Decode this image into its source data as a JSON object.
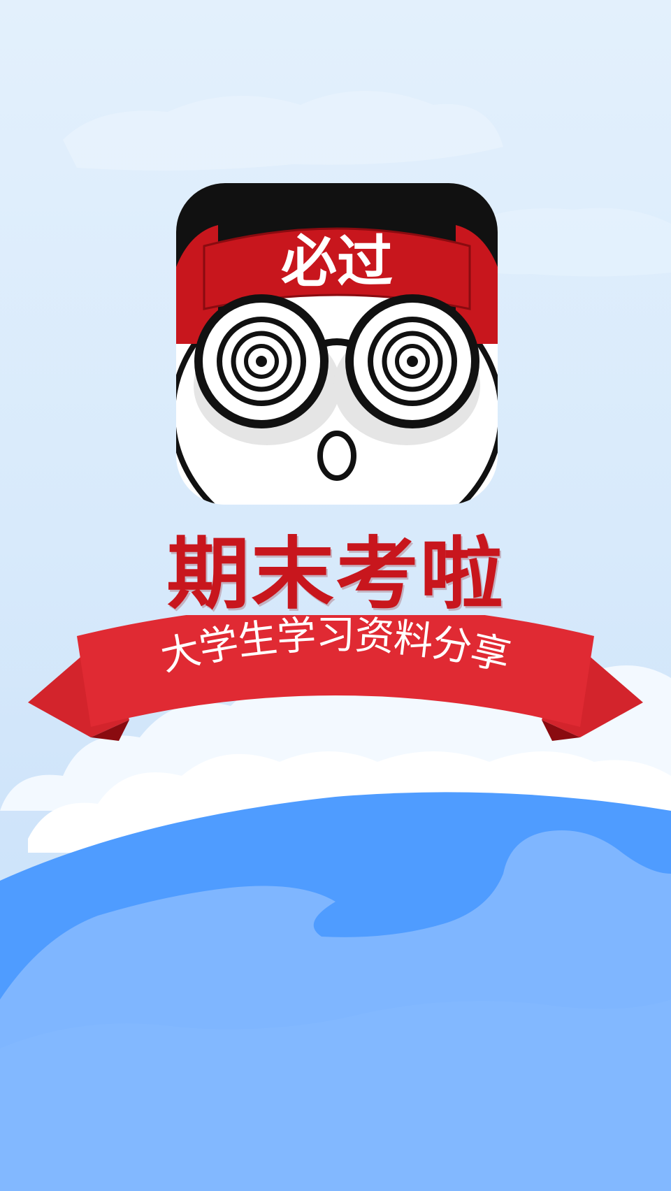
{
  "app": {
    "title": "期末考啦",
    "tagline": "大学生学习资料分享",
    "icon_text": "必过"
  },
  "colors": {
    "brand_red": "#c8161d",
    "ribbon_red": "#e02a33",
    "sky_light": "#dceefc",
    "ocean_blue": "#4f9cff",
    "ocean_light": "#7fb6ff"
  }
}
